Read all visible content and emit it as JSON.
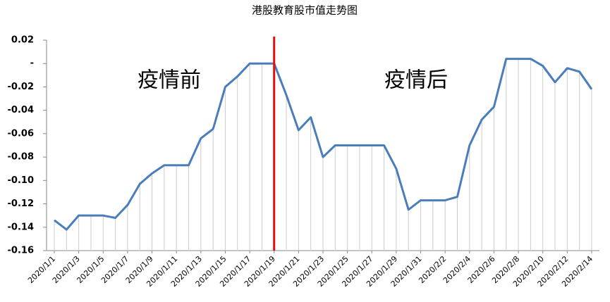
{
  "chart_data": {
    "type": "line",
    "title": "港股教育股市值走势图",
    "categories": [
      "2020/1/1",
      null,
      "2020/1/3",
      null,
      "2020/1/5",
      null,
      "2020/1/7",
      null,
      "2020/1/9",
      null,
      "2020/1/11",
      null,
      "2020/1/13",
      null,
      "2020/1/15",
      null,
      "2020/1/17",
      null,
      "2020/1/19",
      null,
      "2020/1/21",
      null,
      "2020/1/23",
      null,
      "2020/1/25",
      null,
      "2020/1/27",
      null,
      "2020/1/29",
      null,
      "2020/1/31",
      null,
      "2020/2/2",
      null,
      "2020/2/4",
      null,
      "2020/2/6",
      null,
      "2020/2/8",
      null,
      "2020/2/10",
      null,
      "2020/2/12",
      null,
      "2020/2/14"
    ],
    "values": [
      -0.134,
      -0.142,
      -0.13,
      -0.13,
      -0.13,
      -0.132,
      -0.121,
      -0.103,
      -0.094,
      -0.087,
      -0.087,
      -0.087,
      -0.064,
      -0.056,
      -0.02,
      -0.011,
      0.0,
      0.0,
      0.0,
      -0.027,
      -0.057,
      -0.046,
      -0.08,
      -0.07,
      -0.07,
      -0.07,
      -0.07,
      -0.07,
      -0.09,
      -0.125,
      -0.117,
      -0.117,
      -0.117,
      -0.114,
      -0.07,
      -0.048,
      -0.037,
      0.004,
      0.004,
      0.004,
      -0.002,
      -0.016,
      -0.004,
      -0.007,
      -0.022
    ],
    "color": "#4a7ebb",
    "annotations": [
      "疫情前",
      "疫情后"
    ],
    "divider_color": "#e01010",
    "ylim": [
      -0.16,
      0.02
    ],
    "yticks": [
      0.02,
      {
        "value": 0,
        "label": "-"
      },
      -0.02,
      -0.04,
      -0.06,
      -0.08,
      {
        "value": -0.1,
        "label": "-0.10"
      },
      -0.12,
      -0.14,
      -0.16
    ]
  }
}
